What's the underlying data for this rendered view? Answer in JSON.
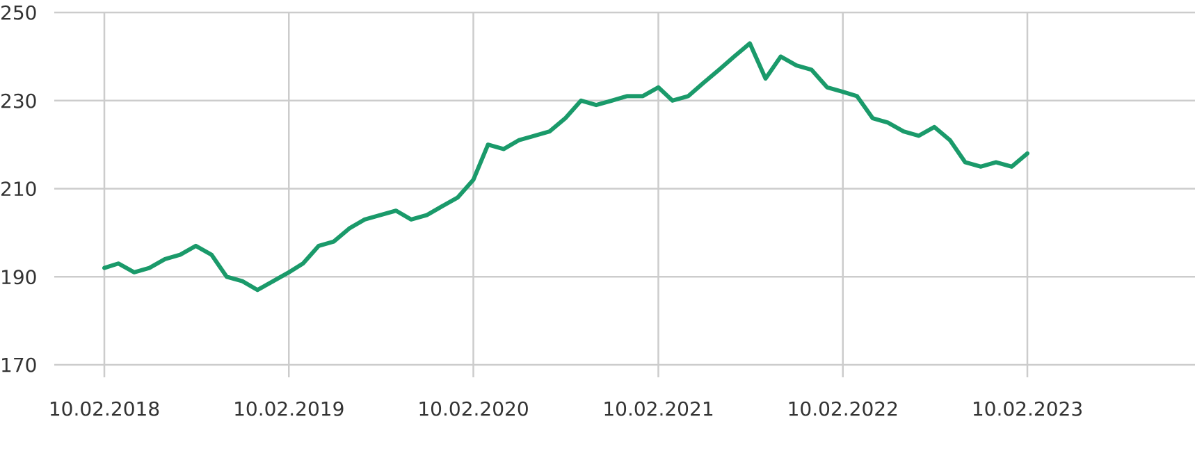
{
  "chart_data": {
    "type": "line",
    "title": "",
    "xlabel": "",
    "ylabel": "",
    "ylim": [
      170,
      250
    ],
    "xlim": [
      "2018-02-10",
      "2023-02-10"
    ],
    "y_ticks": [
      170,
      190,
      210,
      230,
      250
    ],
    "x_ticks": [
      {
        "date": "2018-02-10",
        "label": "10.02.2018"
      },
      {
        "date": "2019-02-10",
        "label": "10.02.2019"
      },
      {
        "date": "2020-02-10",
        "label": "10.02.2020"
      },
      {
        "date": "2021-02-10",
        "label": "10.02.2021"
      },
      {
        "date": "2022-02-10",
        "label": "10.02.2022"
      },
      {
        "date": "2023-02-10",
        "label": "10.02.2023"
      }
    ],
    "grid": true,
    "legend": "none",
    "colors": {
      "line": "#1a9a6a",
      "grid": "#cccccc",
      "text": "#333333"
    },
    "series": [
      {
        "x": [
          "2018-02-10",
          "2018-03-10",
          "2018-04-10",
          "2018-05-10",
          "2018-06-10",
          "2018-07-10",
          "2018-08-10",
          "2018-09-10",
          "2018-10-10",
          "2018-11-10",
          "2018-12-10",
          "2019-01-10",
          "2019-02-10",
          "2019-03-10",
          "2019-04-10",
          "2019-05-10",
          "2019-06-10",
          "2019-07-10",
          "2019-08-10",
          "2019-09-10",
          "2019-10-10",
          "2019-11-10",
          "2019-12-10",
          "2020-01-10",
          "2020-02-10",
          "2020-03-10",
          "2020-04-10",
          "2020-05-10",
          "2020-06-10",
          "2020-07-10",
          "2020-08-10",
          "2020-09-10",
          "2020-10-10",
          "2020-11-10",
          "2020-12-10",
          "2021-01-10",
          "2021-02-10",
          "2021-03-10",
          "2021-04-10",
          "2021-05-10",
          "2021-06-10",
          "2021-07-10",
          "2021-08-10",
          "2021-09-10",
          "2021-10-10",
          "2021-11-10",
          "2021-12-10",
          "2022-01-10",
          "2022-02-10",
          "2022-03-10",
          "2022-04-10",
          "2022-05-10",
          "2022-06-10",
          "2022-07-10",
          "2022-08-10",
          "2022-09-10",
          "2022-10-10",
          "2022-11-10",
          "2022-12-10",
          "2023-01-10",
          "2023-02-10"
        ],
        "y": [
          192,
          193,
          191,
          192,
          194,
          195,
          197,
          195,
          190,
          189,
          187,
          189,
          191,
          193,
          197,
          198,
          201,
          203,
          204,
          205,
          203,
          204,
          206,
          208,
          212,
          220,
          219,
          221,
          222,
          223,
          226,
          230,
          229,
          230,
          231,
          231,
          233,
          230,
          231,
          234,
          237,
          240,
          243,
          235,
          240,
          238,
          237,
          233,
          232,
          231,
          226,
          225,
          223,
          222,
          224,
          221,
          216,
          215,
          216,
          215,
          218
        ]
      }
    ]
  }
}
